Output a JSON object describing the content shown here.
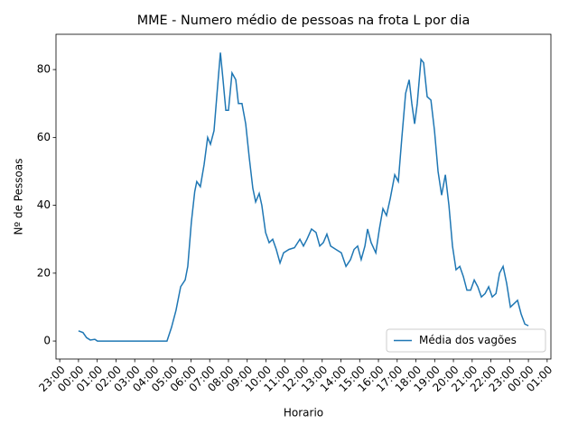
{
  "chart_data": {
    "type": "line",
    "title": "MME - Numero médio de pessoas na frota L por dia",
    "xlabel": "Horario",
    "ylabel": "Nº de Pessoas",
    "x": [
      0,
      0.24,
      0.43,
      0.63,
      0.87,
      1.01,
      4.72,
      4.96,
      5.2,
      5.45,
      5.69,
      5.83,
      6.02,
      6.2,
      6.31,
      6.5,
      6.7,
      6.89,
      7.04,
      7.23,
      7.42,
      7.57,
      7.71,
      7.86,
      8.0,
      8.19,
      8.39,
      8.53,
      8.72,
      8.92,
      9.11,
      9.3,
      9.45,
      9.64,
      9.78,
      9.98,
      10.17,
      10.36,
      10.55,
      10.75,
      10.94,
      11.23,
      11.52,
      11.81,
      12.0,
      12.19,
      12.43,
      12.67,
      12.87,
      13.06,
      13.25,
      13.45,
      13.73,
      14.02,
      14.27,
      14.51,
      14.7,
      14.89,
      15.08,
      15.28,
      15.42,
      15.61,
      15.86,
      16.05,
      16.24,
      16.43,
      16.63,
      16.87,
      17.06,
      17.25,
      17.45,
      17.64,
      17.78,
      17.93,
      18.07,
      18.27,
      18.41,
      18.6,
      18.8,
      18.99,
      19.18,
      19.37,
      19.57,
      19.76,
      19.95,
      20.14,
      20.34,
      20.53,
      20.72,
      20.92,
      21.11,
      21.3,
      21.49,
      21.69,
      21.88,
      22.07,
      22.27,
      22.46,
      22.65,
      22.84,
      23.04,
      23.23,
      23.42,
      23.61,
      23.81,
      24.0
    ],
    "series": [
      {
        "name": "Média dos vagões",
        "color": "#1f77b4",
        "values": [
          3,
          2.5,
          1,
          0.3,
          0.5,
          0,
          0,
          4,
          9,
          16,
          18,
          22,
          35,
          44,
          47,
          45.5,
          52,
          60,
          58,
          62,
          75,
          85,
          77,
          68,
          68,
          79,
          77,
          70,
          70,
          64,
          54,
          45,
          41,
          43.5,
          40,
          32,
          29,
          30,
          27,
          23,
          26,
          27,
          27.5,
          30,
          28,
          30,
          33,
          32,
          28,
          29,
          31.5,
          28,
          27,
          26,
          22,
          24,
          27,
          28,
          24,
          28,
          33,
          29,
          26,
          33,
          39,
          37,
          42,
          49,
          47,
          60,
          73,
          77,
          70,
          64,
          70,
          83,
          82,
          72,
          71,
          62,
          50,
          43,
          49,
          40,
          28,
          21,
          22,
          19,
          15,
          15,
          18,
          16,
          13,
          14,
          16,
          13,
          14,
          20,
          22,
          17,
          10,
          11,
          12,
          8,
          5,
          4.5
        ]
      }
    ],
    "xlim": [
      -1.2,
      25.2
    ],
    "xticks": [
      {
        "value": -1,
        "label": "23:00"
      },
      {
        "value": 0,
        "label": "00:00"
      },
      {
        "value": 1,
        "label": "01:00"
      },
      {
        "value": 2,
        "label": "02:00"
      },
      {
        "value": 3,
        "label": "03:00"
      },
      {
        "value": 4,
        "label": "04:00"
      },
      {
        "value": 5,
        "label": "05:00"
      },
      {
        "value": 6,
        "label": "06:00"
      },
      {
        "value": 7,
        "label": "07:00"
      },
      {
        "value": 8,
        "label": "08:00"
      },
      {
        "value": 9,
        "label": "09:00"
      },
      {
        "value": 10,
        "label": "10:00"
      },
      {
        "value": 11,
        "label": "11:00"
      },
      {
        "value": 12,
        "label": "12:00"
      },
      {
        "value": 13,
        "label": "13:00"
      },
      {
        "value": 14,
        "label": "14:00"
      },
      {
        "value": 15,
        "label": "15:00"
      },
      {
        "value": 16,
        "label": "16:00"
      },
      {
        "value": 17,
        "label": "17:00"
      },
      {
        "value": 18,
        "label": "18:00"
      },
      {
        "value": 19,
        "label": "19:00"
      },
      {
        "value": 20,
        "label": "20:00"
      },
      {
        "value": 21,
        "label": "21:00"
      },
      {
        "value": 22,
        "label": "22:00"
      },
      {
        "value": 23,
        "label": "23:00"
      },
      {
        "value": 24,
        "label": "00:00"
      },
      {
        "value": 25,
        "label": "01:00"
      }
    ],
    "ylim": [
      -5.3,
      90.4
    ],
    "yticks": [
      0,
      20,
      40,
      60,
      80
    ],
    "legend": "lower right"
  }
}
